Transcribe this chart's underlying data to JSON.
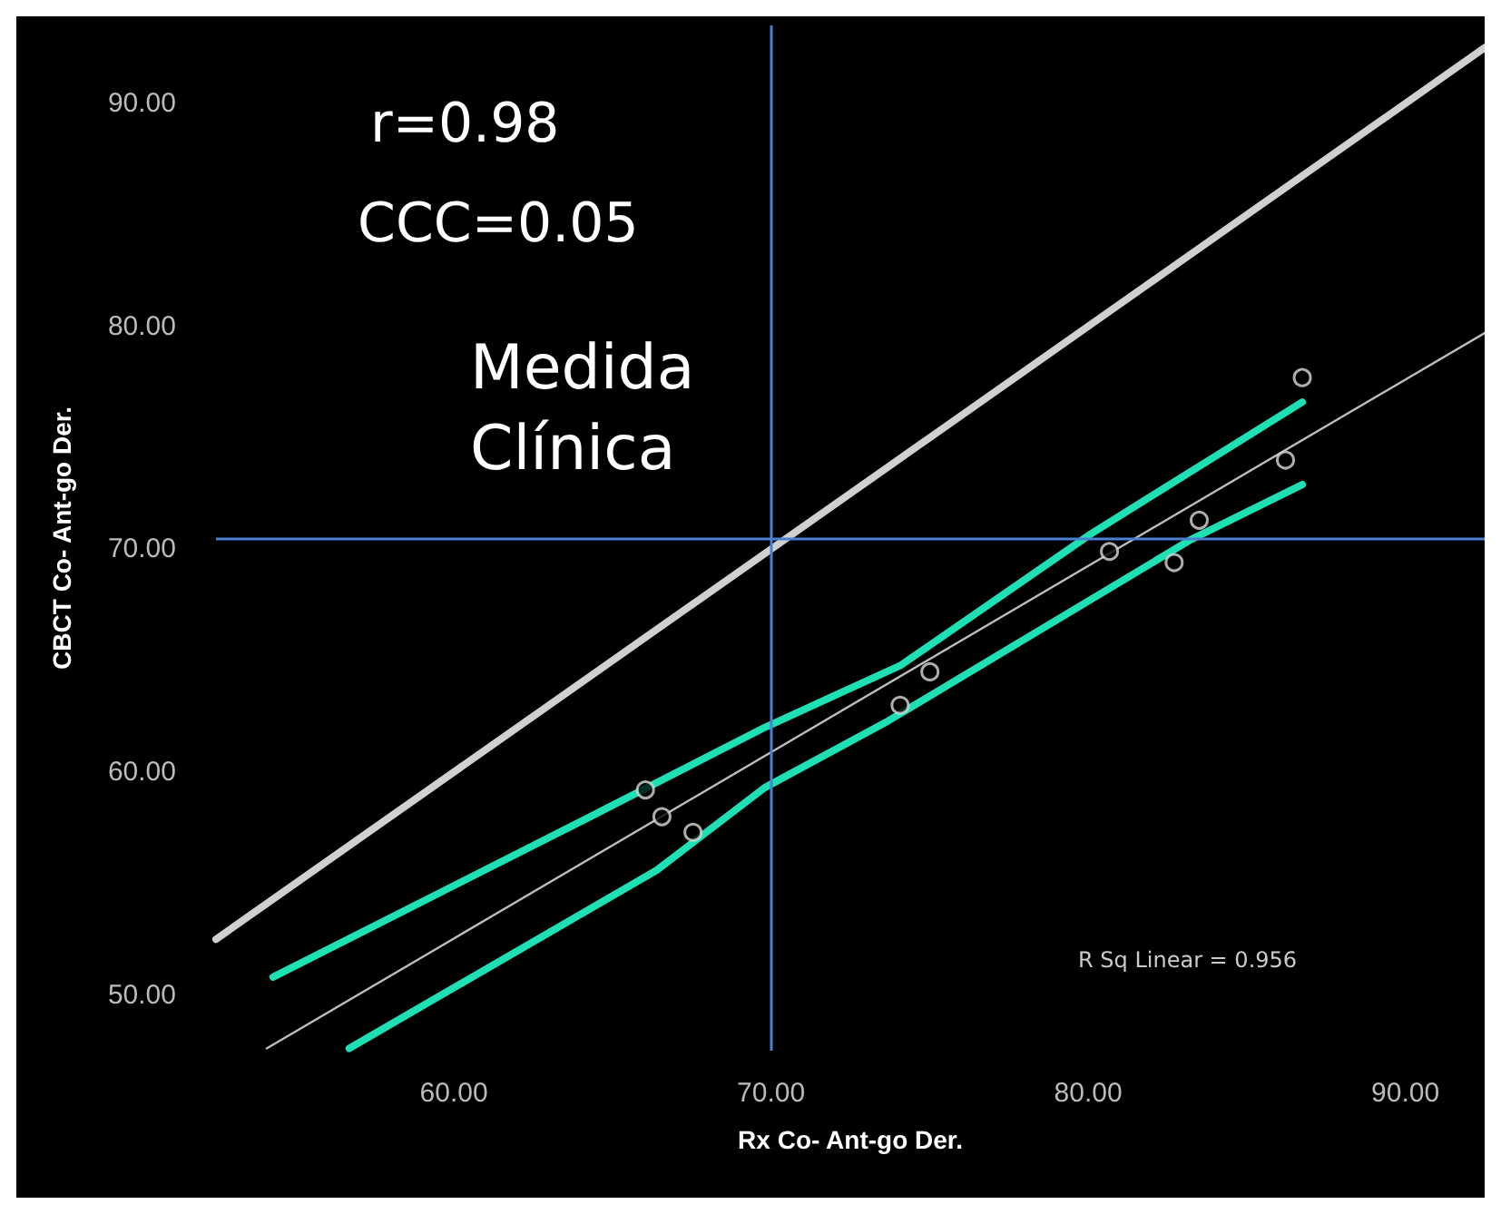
{
  "chart_data": {
    "type": "scatter",
    "xlabel": "Rx Co- Ant-go Der.",
    "ylabel": "CBCT Co- Ant-go Der.",
    "xlim": [
      52.5,
      92.5
    ],
    "ylim": [
      47.5,
      93.5
    ],
    "xticks": [
      {
        "value": 60,
        "label": "60.00"
      },
      {
        "value": 70,
        "label": "70.00"
      },
      {
        "value": 80,
        "label": "80.00"
      },
      {
        "value": 90,
        "label": "90.00"
      }
    ],
    "yticks": [
      {
        "value": 50,
        "label": "50.00"
      },
      {
        "value": 60,
        "label": "60.00"
      },
      {
        "value": 70,
        "label": "70.00"
      },
      {
        "value": 80,
        "label": "80.00"
      },
      {
        "value": 90,
        "label": "90.00"
      }
    ],
    "grid": false,
    "series": [
      {
        "marker": "circle",
        "color": "#d9d9d9",
        "x": [
          86.75,
          86.22,
          83.5,
          82.71,
          80.67,
          75.01,
          74.07,
          66.04,
          66.56,
          67.54
        ],
        "values": [
          77.7,
          74.0,
          71.3,
          69.4,
          69.9,
          64.5,
          63.0,
          59.2,
          58.0,
          57.3
        ]
      },
      {
        "type": "line",
        "marker": "none",
        "color": "#d0d0d0",
        "x": [
          52.5,
          92.5
        ],
        "values": [
          52.5,
          92.5
        ]
      },
      {
        "type": "line",
        "marker": "none",
        "color": "#bdbdbd",
        "x": [
          54.1,
          92.5
        ],
        "values": [
          47.6,
          79.7
        ]
      },
      {
        "type": "line",
        "marker": "none",
        "color": "#1fe0b4",
        "x": [
          54.3,
          64.3,
          69.8,
          74.1,
          80.1,
          86.75
        ],
        "values": [
          50.8,
          58.0,
          62.0,
          64.8,
          70.7,
          76.6
        ]
      },
      {
        "type": "line",
        "marker": "none",
        "color": "#1fe0b4",
        "x": [
          56.7,
          66.4,
          69.8,
          73.7,
          83.2,
          86.75
        ],
        "values": [
          47.6,
          55.6,
          59.3,
          62.3,
          70.4,
          72.9
        ]
      }
    ],
    "ref_lines": [
      {
        "axis": "x",
        "value": 70,
        "color": "#4a7fd4"
      },
      {
        "axis": "y",
        "value": 70.5,
        "color": "#4a7fd4"
      }
    ],
    "annotations": [
      "r=0.98",
      "CCC=0.05",
      "Medida Clínica",
      "R Sq Linear = 0.956"
    ]
  }
}
